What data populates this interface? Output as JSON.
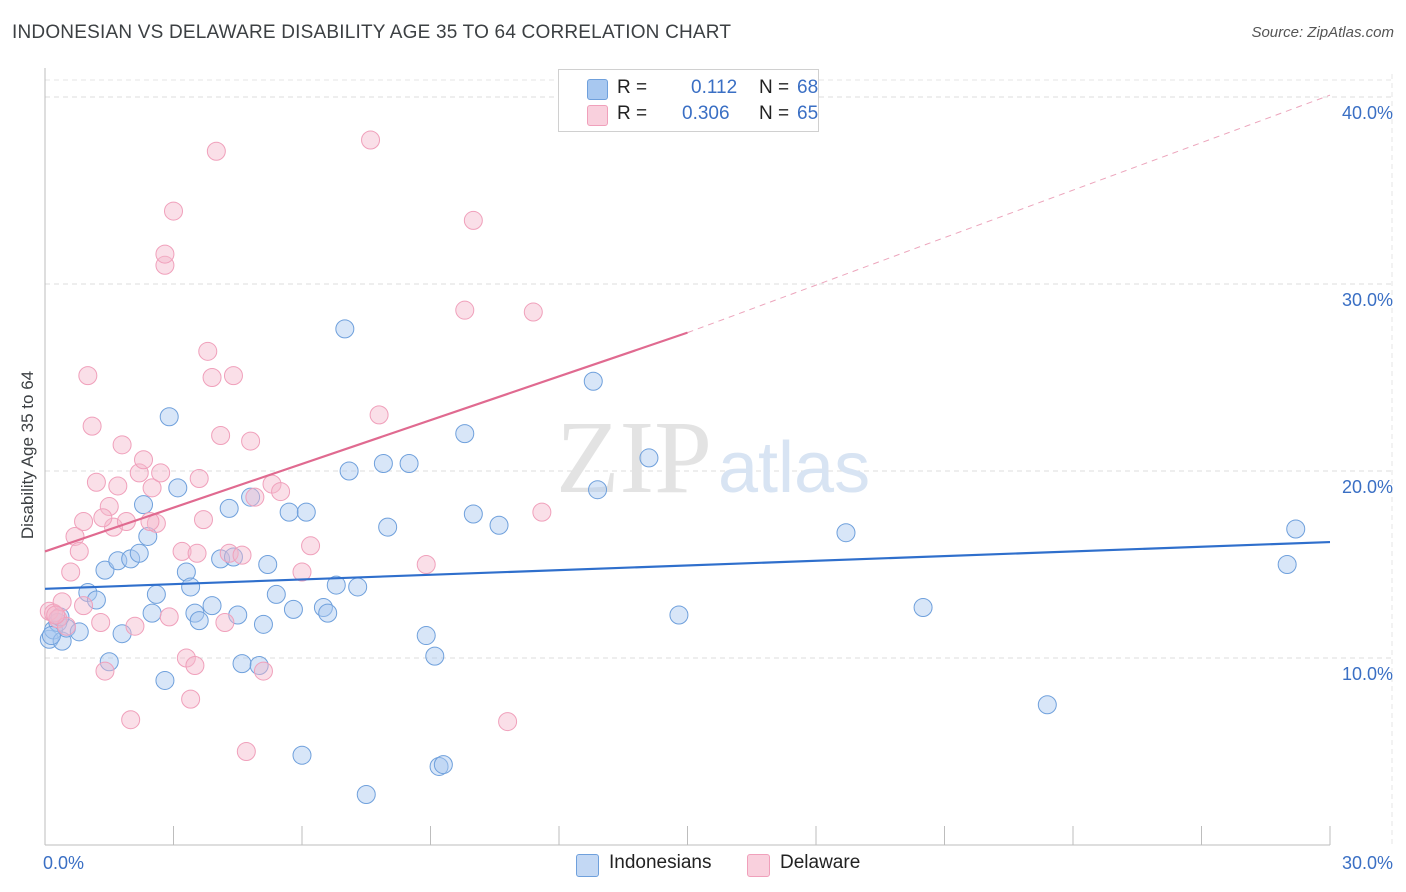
{
  "header": {
    "title": "INDONESIAN VS DELAWARE DISABILITY AGE 35 TO 64 CORRELATION CHART",
    "source": "Source: ZipAtlas.com"
  },
  "watermark": {
    "zip": "ZIP",
    "atlas": "atlas"
  },
  "legend": {
    "rows": [
      {
        "r_label": "R =",
        "r_value": "0.112",
        "n_label": "N =",
        "n_value": "68",
        "color": "#a8c8f0"
      },
      {
        "r_label": "R =",
        "r_value": "0.306",
        "n_label": "N =",
        "n_value": "65",
        "color": "#f5b8cb"
      }
    ]
  },
  "bottom_legend": {
    "items": [
      {
        "label": "Indonesians",
        "color": "#a8c8f0"
      },
      {
        "label": "Delaware",
        "color": "#f5b8cb"
      }
    ]
  },
  "chart_data": {
    "type": "scatter",
    "title": "INDONESIAN VS DELAWARE DISABILITY AGE 35 TO 64 CORRELATION CHART",
    "xlabel": "",
    "ylabel": "Disability Age 35 to 64",
    "xlim": [
      0,
      30
    ],
    "ylim": [
      0,
      40
    ],
    "x_tick_labels": [
      "0.0%",
      "30.0%"
    ],
    "y_ticks": [
      10,
      20,
      30,
      40
    ],
    "y_tick_labels": [
      "10.0%",
      "20.0%",
      "30.0%",
      "40.0%"
    ],
    "grid": true,
    "legend_position": "top-center",
    "series": [
      {
        "name": "Indonesians",
        "color": "#6fa0dc",
        "line_color": "#2f6fcc",
        "trend": {
          "x": [
            0,
            30
          ],
          "y": [
            13.7,
            16.2
          ],
          "dashed_from": null
        },
        "points": [
          [
            0.1,
            11.0
          ],
          [
            0.2,
            11.5
          ],
          [
            0.3,
            11.9
          ],
          [
            0.4,
            10.9
          ],
          [
            0.5,
            11.6
          ],
          [
            0.8,
            11.4
          ],
          [
            1.0,
            13.5
          ],
          [
            1.2,
            13.1
          ],
          [
            1.4,
            14.7
          ],
          [
            1.5,
            9.8
          ],
          [
            1.7,
            15.2
          ],
          [
            1.8,
            11.3
          ],
          [
            2.0,
            15.3
          ],
          [
            2.2,
            15.6
          ],
          [
            2.3,
            18.2
          ],
          [
            2.4,
            16.5
          ],
          [
            2.5,
            12.4
          ],
          [
            2.6,
            13.4
          ],
          [
            2.8,
            8.8
          ],
          [
            2.9,
            22.9
          ],
          [
            3.1,
            19.1
          ],
          [
            3.3,
            14.6
          ],
          [
            3.4,
            13.8
          ],
          [
            3.5,
            12.4
          ],
          [
            3.6,
            12.0
          ],
          [
            3.9,
            12.8
          ],
          [
            4.1,
            15.3
          ],
          [
            4.3,
            18.0
          ],
          [
            4.4,
            15.4
          ],
          [
            4.5,
            12.3
          ],
          [
            4.6,
            9.7
          ],
          [
            4.8,
            18.6
          ],
          [
            5.0,
            9.6
          ],
          [
            5.1,
            11.8
          ],
          [
            5.2,
            15.0
          ],
          [
            5.4,
            13.4
          ],
          [
            5.7,
            17.8
          ],
          [
            5.8,
            12.6
          ],
          [
            6.0,
            4.8
          ],
          [
            6.1,
            17.8
          ],
          [
            6.5,
            12.7
          ],
          [
            6.6,
            12.4
          ],
          [
            6.8,
            13.9
          ],
          [
            7.0,
            27.6
          ],
          [
            7.1,
            20.0
          ],
          [
            7.3,
            13.8
          ],
          [
            7.5,
            2.7
          ],
          [
            7.9,
            20.4
          ],
          [
            8.0,
            17.0
          ],
          [
            8.5,
            20.4
          ],
          [
            8.9,
            11.2
          ],
          [
            9.1,
            10.1
          ],
          [
            9.2,
            4.2
          ],
          [
            9.3,
            4.3
          ],
          [
            9.8,
            22.0
          ],
          [
            10.0,
            17.7
          ],
          [
            10.6,
            17.1
          ],
          [
            12.8,
            24.8
          ],
          [
            12.9,
            19.0
          ],
          [
            14.1,
            20.7
          ],
          [
            14.8,
            12.3
          ],
          [
            18.7,
            16.7
          ],
          [
            20.5,
            12.7
          ],
          [
            23.4,
            7.5
          ],
          [
            29.0,
            15.0
          ],
          [
            29.2,
            16.9
          ],
          [
            0.15,
            11.2
          ],
          [
            0.35,
            12.2
          ]
        ]
      },
      {
        "name": "Delaware",
        "color": "#f0a0bb",
        "line_color": "#e06a90",
        "trend": {
          "x": [
            0,
            15
          ],
          "y": [
            15.7,
            27.4
          ],
          "dashed_to": [
            30,
            40.1
          ]
        },
        "points": [
          [
            0.1,
            12.5
          ],
          [
            0.2,
            12.4
          ],
          [
            0.3,
            12.1
          ],
          [
            0.4,
            13.0
          ],
          [
            0.5,
            11.7
          ],
          [
            0.6,
            14.6
          ],
          [
            0.7,
            16.5
          ],
          [
            0.8,
            15.7
          ],
          [
            0.9,
            12.8
          ],
          [
            0.9,
            17.3
          ],
          [
            1.0,
            25.1
          ],
          [
            1.1,
            22.4
          ],
          [
            1.2,
            19.4
          ],
          [
            1.3,
            11.9
          ],
          [
            1.4,
            9.3
          ],
          [
            1.5,
            18.1
          ],
          [
            1.6,
            17.0
          ],
          [
            1.7,
            19.2
          ],
          [
            1.8,
            21.4
          ],
          [
            1.9,
            17.3
          ],
          [
            2.0,
            6.7
          ],
          [
            2.1,
            11.7
          ],
          [
            2.2,
            19.9
          ],
          [
            2.3,
            20.6
          ],
          [
            2.5,
            19.1
          ],
          [
            2.6,
            17.2
          ],
          [
            2.7,
            19.9
          ],
          [
            2.8,
            31.0
          ],
          [
            2.8,
            31.6
          ],
          [
            2.9,
            12.2
          ],
          [
            3.0,
            33.9
          ],
          [
            3.2,
            15.7
          ],
          [
            3.3,
            10.0
          ],
          [
            3.4,
            7.8
          ],
          [
            3.5,
            9.6
          ],
          [
            3.6,
            19.6
          ],
          [
            3.7,
            17.4
          ],
          [
            3.8,
            26.4
          ],
          [
            3.9,
            25.0
          ],
          [
            4.0,
            37.1
          ],
          [
            4.1,
            21.9
          ],
          [
            4.2,
            11.9
          ],
          [
            4.3,
            15.6
          ],
          [
            4.4,
            25.1
          ],
          [
            4.6,
            15.5
          ],
          [
            4.7,
            5.0
          ],
          [
            4.8,
            21.6
          ],
          [
            4.9,
            18.6
          ],
          [
            5.1,
            9.3
          ],
          [
            5.3,
            19.3
          ],
          [
            5.5,
            18.9
          ],
          [
            6.0,
            14.6
          ],
          [
            6.2,
            16.0
          ],
          [
            7.6,
            37.7
          ],
          [
            7.8,
            23.0
          ],
          [
            8.9,
            15.0
          ],
          [
            9.8,
            28.6
          ],
          [
            10.0,
            33.4
          ],
          [
            10.8,
            6.6
          ],
          [
            11.4,
            28.5
          ],
          [
            11.6,
            17.8
          ],
          [
            0.25,
            12.3
          ],
          [
            1.35,
            17.5
          ],
          [
            2.45,
            17.3
          ],
          [
            3.55,
            15.6
          ]
        ]
      }
    ]
  }
}
